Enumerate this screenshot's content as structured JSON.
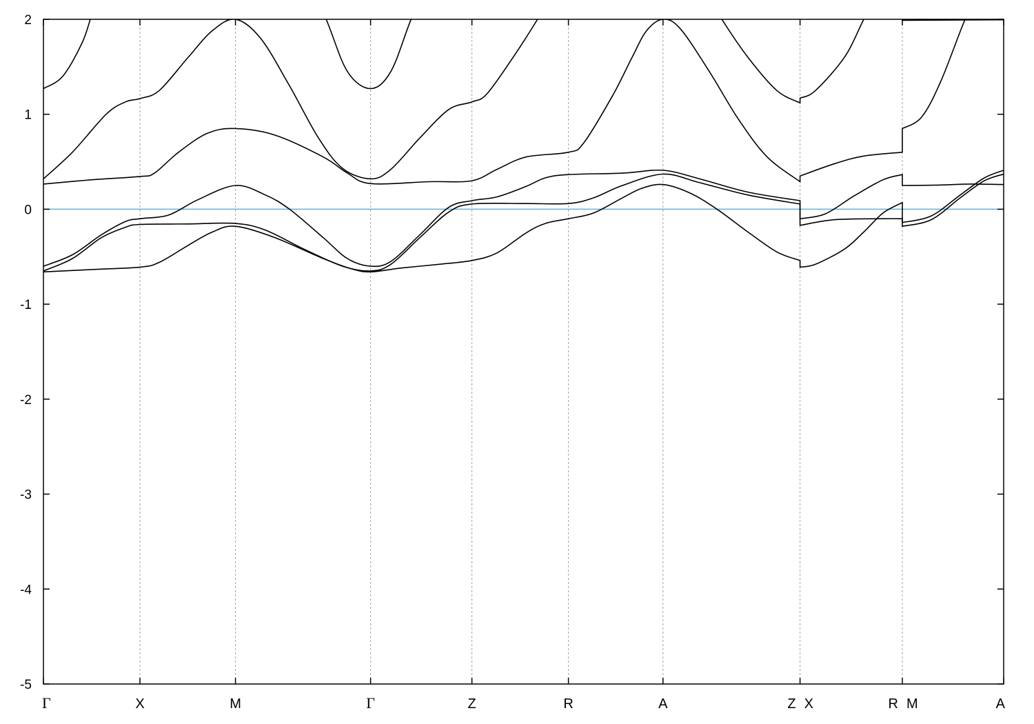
{
  "chart_data": {
    "type": "line",
    "title": "",
    "xlabel": "",
    "ylabel": "",
    "ylim": [
      -5,
      2
    ],
    "yticks": [
      -5,
      -4,
      -3,
      -2,
      -1,
      0,
      1,
      2
    ],
    "grid": "vertical dashed lines at high-symmetry points",
    "legend": "none",
    "xlim": [
      0,
      9.95
    ],
    "xticks": [
      {
        "label": "Γ",
        "x": 0
      },
      {
        "label": "X",
        "x": 1.0
      },
      {
        "label": "M",
        "x": 1.99
      },
      {
        "label": "Γ",
        "x": 3.39
      },
      {
        "label": "Z",
        "x": 4.44
      },
      {
        "label": "R",
        "x": 5.44
      },
      {
        "label": "A",
        "x": 6.42
      },
      {
        "label": "Z X",
        "x": 7.84
      },
      {
        "label": "R M",
        "x": 8.9
      },
      {
        "label": "A",
        "x": 9.95
      }
    ],
    "reference_line": {
      "y": 0,
      "color": "#56b4e9"
    },
    "line_color": "#000000",
    "series": [
      {
        "points": [
          [
            0,
            -0.66
          ],
          [
            0.5,
            -0.635
          ],
          [
            1,
            -0.61
          ],
          [
            1.2,
            -0.56
          ],
          [
            1.5,
            -0.38
          ],
          [
            1.75,
            -0.24
          ],
          [
            1.99,
            -0.18
          ],
          [
            2.4,
            -0.3
          ],
          [
            2.9,
            -0.52
          ],
          [
            3.2,
            -0.63
          ],
          [
            3.39,
            -0.66
          ],
          [
            3.7,
            -0.62
          ],
          [
            4.1,
            -0.58
          ],
          [
            4.44,
            -0.54
          ],
          [
            4.7,
            -0.46
          ],
          [
            5.0,
            -0.25
          ],
          [
            5.2,
            -0.15
          ],
          [
            5.44,
            -0.1
          ],
          [
            5.7,
            -0.04
          ],
          [
            6.0,
            0.12
          ],
          [
            6.2,
            0.22
          ],
          [
            6.42,
            0.26
          ],
          [
            6.7,
            0.17
          ],
          [
            6.98,
            0
          ],
          [
            7.3,
            -0.24
          ],
          [
            7.6,
            -0.45
          ],
          [
            7.84,
            -0.54
          ],
          [
            7.84,
            -0.61
          ],
          [
            8.0,
            -0.58
          ],
          [
            8.3,
            -0.42
          ],
          [
            8.5,
            -0.24
          ],
          [
            8.7,
            -0.04
          ],
          [
            8.9,
            0.07
          ],
          [
            8.9,
            -0.14
          ],
          [
            9.2,
            -0.07
          ],
          [
            9.5,
            0.15
          ],
          [
            9.75,
            0.33
          ],
          [
            9.95,
            0.41
          ]
        ]
      },
      {
        "points": [
          [
            0,
            -0.65
          ],
          [
            0.3,
            -0.52
          ],
          [
            0.6,
            -0.3
          ],
          [
            0.85,
            -0.19
          ],
          [
            1,
            -0.16
          ],
          [
            1.5,
            -0.155
          ],
          [
            1.99,
            -0.15
          ],
          [
            2.3,
            -0.22
          ],
          [
            2.7,
            -0.42
          ],
          [
            3.1,
            -0.6
          ],
          [
            3.39,
            -0.65
          ],
          [
            3.6,
            -0.58
          ],
          [
            3.9,
            -0.3
          ],
          [
            4.2,
            -0.03
          ],
          [
            4.44,
            0.055
          ],
          [
            5.0,
            0.06
          ],
          [
            5.44,
            0.06
          ],
          [
            5.7,
            0.12
          ],
          [
            6.0,
            0.25
          ],
          [
            6.42,
            0.37
          ],
          [
            6.8,
            0.28
          ],
          [
            7.3,
            0.15
          ],
          [
            7.84,
            0.055
          ],
          [
            7.84,
            -0.17
          ],
          [
            8.2,
            -0.11
          ],
          [
            8.7,
            -0.1
          ],
          [
            8.9,
            -0.1
          ],
          [
            8.9,
            -0.18
          ],
          [
            9.2,
            -0.11
          ],
          [
            9.5,
            0.12
          ],
          [
            9.75,
            0.3
          ],
          [
            9.95,
            0.37
          ]
        ]
      },
      {
        "points": [
          [
            0,
            -0.6
          ],
          [
            0.3,
            -0.48
          ],
          [
            0.6,
            -0.27
          ],
          [
            0.85,
            -0.13
          ],
          [
            1,
            -0.1
          ],
          [
            1.3,
            -0.06
          ],
          [
            1.6,
            0.1
          ],
          [
            1.99,
            0.25
          ],
          [
            2.3,
            0.15
          ],
          [
            2.55,
            0
          ],
          [
            2.9,
            -0.3
          ],
          [
            3.15,
            -0.52
          ],
          [
            3.39,
            -0.6
          ],
          [
            3.6,
            -0.55
          ],
          [
            3.9,
            -0.27
          ],
          [
            4.2,
            0.02
          ],
          [
            4.44,
            0.09
          ],
          [
            4.7,
            0.13
          ],
          [
            5.0,
            0.24
          ],
          [
            5.2,
            0.33
          ],
          [
            5.44,
            0.365
          ],
          [
            6.0,
            0.38
          ],
          [
            6.42,
            0.41
          ],
          [
            6.8,
            0.32
          ],
          [
            7.3,
            0.18
          ],
          [
            7.84,
            0.09
          ],
          [
            7.84,
            -0.1
          ],
          [
            8.1,
            -0.05
          ],
          [
            8.4,
            0.14
          ],
          [
            8.7,
            0.31
          ],
          [
            8.9,
            0.365
          ],
          [
            8.9,
            0.25
          ],
          [
            9.3,
            0.255
          ],
          [
            9.6,
            0.265
          ],
          [
            9.95,
            0.26
          ]
        ]
      },
      {
        "points": [
          [
            0,
            0.265
          ],
          [
            0.5,
            0.31
          ],
          [
            1,
            0.345
          ],
          [
            1.15,
            0.38
          ],
          [
            1.4,
            0.6
          ],
          [
            1.7,
            0.8
          ],
          [
            1.99,
            0.85
          ],
          [
            2.4,
            0.78
          ],
          [
            2.9,
            0.55
          ],
          [
            3.15,
            0.38
          ],
          [
            3.39,
            0.27
          ],
          [
            4.0,
            0.29
          ],
          [
            4.44,
            0.3
          ],
          [
            4.7,
            0.42
          ],
          [
            5.0,
            0.55
          ],
          [
            5.44,
            0.6
          ],
          [
            5.6,
            0.7
          ],
          [
            5.9,
            1.2
          ],
          [
            6.1,
            1.6
          ],
          [
            6.25,
            1.88
          ],
          [
            6.42,
            2.0
          ],
          [
            6.6,
            1.9
          ],
          [
            6.9,
            1.45
          ],
          [
            7.2,
            0.95
          ],
          [
            7.5,
            0.55
          ],
          [
            7.84,
            0.29
          ],
          [
            7.84,
            0.35
          ],
          [
            8.2,
            0.48
          ],
          [
            8.5,
            0.56
          ],
          [
            8.9,
            0.6
          ],
          [
            8.9,
            0.85
          ],
          [
            9.1,
            0.97
          ],
          [
            9.3,
            1.35
          ],
          [
            9.55,
            2.0
          ],
          [
            9.7,
            2.3
          ]
        ]
      },
      {
        "points": [
          [
            0,
            0.32
          ],
          [
            0.3,
            0.6
          ],
          [
            0.65,
            1.0
          ],
          [
            0.85,
            1.13
          ],
          [
            1,
            1.165
          ],
          [
            1.2,
            1.25
          ],
          [
            1.5,
            1.6
          ],
          [
            1.75,
            1.88
          ],
          [
            1.99,
            2.0
          ],
          [
            2.25,
            1.8
          ],
          [
            2.55,
            1.3
          ],
          [
            2.85,
            0.75
          ],
          [
            3.1,
            0.43
          ],
          [
            3.39,
            0.32
          ],
          [
            3.6,
            0.42
          ],
          [
            3.9,
            0.75
          ],
          [
            4.2,
            1.05
          ],
          [
            4.44,
            1.13
          ],
          [
            4.6,
            1.22
          ],
          [
            4.9,
            1.65
          ],
          [
            5.12,
            2.0
          ],
          [
            5.3,
            2.3
          ],
          [
            6.8,
            2.4
          ],
          [
            7.03,
            2.0
          ],
          [
            7.3,
            1.6
          ],
          [
            7.6,
            1.25
          ],
          [
            7.84,
            1.12
          ],
          [
            7.84,
            1.17
          ],
          [
            8.0,
            1.25
          ],
          [
            8.3,
            1.6
          ],
          [
            8.5,
            2.0
          ],
          [
            8.7,
            2.4
          ],
          [
            8.9,
            2.5
          ],
          [
            8.9,
            1.99
          ],
          [
            9.95,
            1.995
          ]
        ]
      },
      {
        "points": [
          [
            0,
            1.27
          ],
          [
            0.2,
            1.4
          ],
          [
            0.4,
            1.75
          ],
          [
            0.5,
            2.05
          ],
          [
            0.6,
            2.4
          ],
          [
            2.6,
            2.8
          ],
          [
            2.93,
            2.0
          ],
          [
            3.15,
            1.45
          ],
          [
            3.39,
            1.27
          ],
          [
            3.6,
            1.45
          ],
          [
            3.81,
            2.0
          ],
          [
            4.0,
            2.4
          ]
        ]
      }
    ]
  }
}
